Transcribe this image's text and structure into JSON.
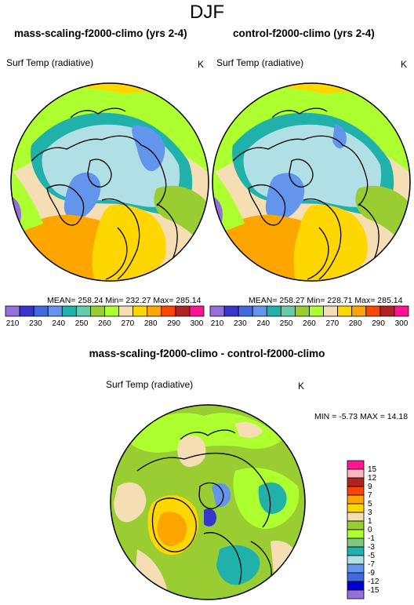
{
  "figure": {
    "title": "DJF"
  },
  "panels": {
    "left": {
      "title": "mass-scaling-f2000-climo (yrs 2-4)",
      "label": "Surf Temp (radiative)",
      "unit": "K",
      "stats": "MEAN= 258.24  Min= 232.27  Max= 285.14"
    },
    "right": {
      "title": "control-f2000-climo (yrs 2-4)",
      "label": "Surf Temp (radiative)",
      "unit": "K",
      "stats": "MEAN= 258.27  Min= 228.71  Max= 285.14"
    },
    "diff": {
      "title": "mass-scaling-f2000-climo - control-f2000-climo",
      "label": "Surf Temp (radiative)",
      "unit": "K",
      "minmax": "MIN =  -5.73 MAX =  14.18"
    }
  },
  "colorbar_top": {
    "colors": [
      "#9370db",
      "#3636cc",
      "#4169e1",
      "#6495ed",
      "#20b2aa",
      "#66cdaa",
      "#9acd32",
      "#adff2f",
      "#f5deb3",
      "#ffd700",
      "#ffa500",
      "#ff4500",
      "#b22222",
      "#ff1493"
    ],
    "labels": [
      "210",
      "230",
      "240",
      "250",
      "260",
      "270",
      "280",
      "290",
      "300"
    ]
  },
  "colorbar_diff": {
    "colors": [
      "#ff1493",
      "#ffb6c1",
      "#b22222",
      "#ff4500",
      "#ffa500",
      "#ffd700",
      "#f5deb3",
      "#9acd32",
      "#adff2f",
      "#7fc97f",
      "#20b2aa",
      "#b0e0e6",
      "#6495ed",
      "#4169e1",
      "#0000cd",
      "#9370db"
    ],
    "labels": [
      "15",
      "12",
      "9",
      "7",
      "5",
      "3",
      "1",
      "0",
      "-1",
      "-3",
      "-5",
      "-7",
      "-9",
      "-12",
      "-15"
    ]
  }
}
